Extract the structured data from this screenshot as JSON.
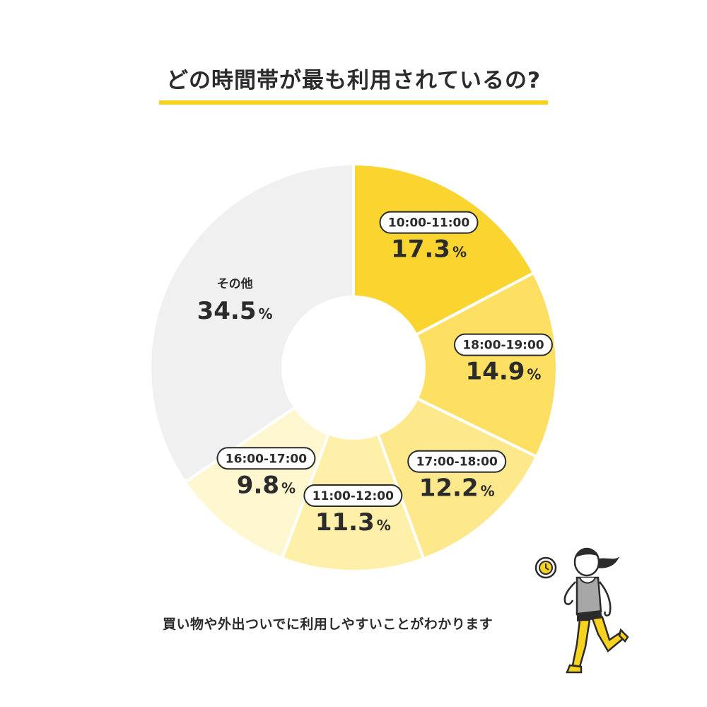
{
  "title": "どの時間帯が最も利用されているの?",
  "caption": "買い物や外出ついでに利用しやすいことがわかります",
  "colors": {
    "accent": "#f7d21f",
    "text": "#2b2b2b"
  },
  "chart_data": {
    "type": "pie",
    "variant": "donut",
    "title": "どの時間帯が最も利用されているの?",
    "unit": "%",
    "slices": [
      {
        "label": "10:00-11:00",
        "value": 17.3,
        "color": "#fbd52f",
        "pill": true
      },
      {
        "label": "18:00-19:00",
        "value": 14.9,
        "color": "#fde062",
        "pill": true
      },
      {
        "label": "17:00-18:00",
        "value": 12.2,
        "color": "#fde98c",
        "pill": true
      },
      {
        "label": "11:00-12:00",
        "value": 11.3,
        "color": "#fef0a8",
        "pill": true
      },
      {
        "label": "16:00-17:00",
        "value": 9.8,
        "color": "#fef7cf",
        "pill": true
      },
      {
        "label": "その他",
        "value": 34.5,
        "color": "#f0f0f0",
        "pill": false
      }
    ]
  }
}
